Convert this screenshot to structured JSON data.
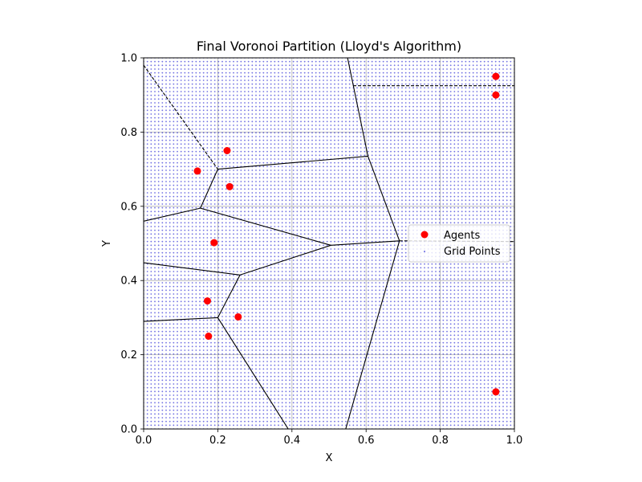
{
  "chart_data": {
    "type": "scatter",
    "title": "Final Voronoi Partition (Lloyd's Algorithm)",
    "xlabel": "X",
    "ylabel": "Y",
    "xlim": [
      0.0,
      1.0
    ],
    "ylim": [
      0.0,
      1.0
    ],
    "xticks": [
      "0.0",
      "0.2",
      "0.4",
      "0.6",
      "0.8",
      "1.0"
    ],
    "yticks": [
      "0.0",
      "0.2",
      "0.4",
      "0.6",
      "0.8",
      "1.0"
    ],
    "grid": true,
    "legend_position": "center-right",
    "series": [
      {
        "name": "Agents",
        "color": "#ff0000",
        "marker": "circle",
        "points": [
          [
            0.95,
            0.95
          ],
          [
            0.95,
            0.9
          ],
          [
            0.225,
            0.75
          ],
          [
            0.145,
            0.695
          ],
          [
            0.232,
            0.653
          ],
          [
            0.19,
            0.502
          ],
          [
            0.172,
            0.345
          ],
          [
            0.255,
            0.302
          ],
          [
            0.175,
            0.25
          ],
          [
            0.95,
            0.1
          ]
        ]
      },
      {
        "name": "Grid Points",
        "color": "#0000cc",
        "marker": "dot",
        "grid_range": [
          0.0,
          1.0
        ],
        "grid_count": 100
      }
    ],
    "voronoi_edges": [
      {
        "from": [
          0.0,
          0.98
        ],
        "to": [
          0.2,
          0.7
        ],
        "style": "dashed"
      },
      {
        "from": [
          0.2,
          0.7
        ],
        "to": [
          0.605,
          0.735
        ],
        "style": "solid"
      },
      {
        "from": [
          0.2,
          0.7
        ],
        "to": [
          0.153,
          0.595
        ],
        "style": "solid"
      },
      {
        "from": [
          0.0,
          0.56
        ],
        "to": [
          0.153,
          0.595
        ],
        "style": "solid"
      },
      {
        "from": [
          0.153,
          0.595
        ],
        "to": [
          0.505,
          0.495
        ],
        "style": "solid"
      },
      {
        "from": [
          0.605,
          0.735
        ],
        "to": [
          0.55,
          1.0
        ],
        "style": "solid"
      },
      {
        "from": [
          0.55,
          1.0
        ],
        "to": [
          0.56,
          1.03
        ],
        "style": "dashed"
      },
      {
        "from": [
          0.605,
          0.735
        ],
        "to": [
          0.69,
          0.507
        ],
        "style": "solid"
      },
      {
        "from": [
          0.505,
          0.495
        ],
        "to": [
          0.69,
          0.507
        ],
        "style": "solid"
      },
      {
        "from": [
          0.505,
          0.495
        ],
        "to": [
          0.26,
          0.415
        ],
        "style": "solid"
      },
      {
        "from": [
          0.0,
          0.448
        ],
        "to": [
          0.26,
          0.415
        ],
        "style": "solid"
      },
      {
        "from": [
          0.26,
          0.415
        ],
        "to": [
          0.2,
          0.3
        ],
        "style": "solid"
      },
      {
        "from": [
          0.0,
          0.29
        ],
        "to": [
          0.2,
          0.3
        ],
        "style": "solid"
      },
      {
        "from": [
          0.2,
          0.3
        ],
        "to": [
          0.39,
          0.0
        ],
        "style": "solid"
      },
      {
        "from": [
          0.69,
          0.507
        ],
        "to": [
          0.545,
          0.0
        ],
        "style": "solid"
      },
      {
        "from": [
          0.69,
          0.507
        ],
        "to": [
          1.0,
          0.505
        ],
        "style": "dashed"
      },
      {
        "from": [
          0.565,
          0.925
        ],
        "to": [
          1.0,
          0.925
        ],
        "style": "dashed"
      }
    ]
  }
}
